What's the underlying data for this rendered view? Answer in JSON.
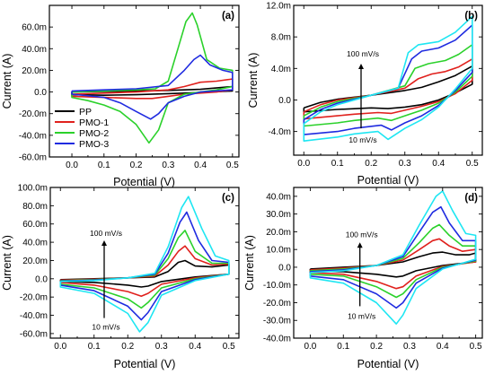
{
  "chart_data": [
    {
      "id": "a",
      "type": "line",
      "panel_label": "(a)",
      "xlabel": "Potential (V)",
      "ylabel": "Current (A)",
      "xlim": [
        -0.07,
        0.52
      ],
      "ylim": [
        -60,
        80
      ],
      "xticks": [
        0.0,
        0.1,
        0.2,
        0.3,
        0.4,
        0.5
      ],
      "xtick_labels": [
        "0.0",
        "0.1",
        "0.2",
        "0.3",
        "0.4",
        "0.5"
      ],
      "yticks": [
        -60,
        -40,
        -20,
        0,
        20,
        40,
        60
      ],
      "ytick_labels": [
        "-60.0m",
        "-40.0m",
        "-20.0m",
        "0.0",
        "20.0m",
        "40.0m",
        "60.0m"
      ],
      "legend": {
        "position": "lower-left",
        "entries": [
          "PP",
          "PMO-1",
          "PMO-2",
          "PMO-3"
        ]
      },
      "series": [
        {
          "name": "PP",
          "color": "#000000",
          "x": [
            0.0,
            0.1,
            0.2,
            0.3,
            0.4,
            0.5,
            0.5,
            0.4,
            0.3,
            0.2,
            0.1,
            0.0,
            0.0
          ],
          "y": [
            0.0,
            0.5,
            1.0,
            1.5,
            2.5,
            5.0,
            1.0,
            -0.5,
            -1.5,
            -2.5,
            -3.0,
            -2.5,
            0.0
          ]
        },
        {
          "name": "PMO-1",
          "color": "#e0211d",
          "x": [
            0.0,
            0.1,
            0.2,
            0.3,
            0.35,
            0.4,
            0.45,
            0.5,
            0.5,
            0.45,
            0.4,
            0.35,
            0.3,
            0.25,
            0.2,
            0.1,
            0.0,
            0.0
          ],
          "y": [
            -2.0,
            -1.0,
            0.0,
            2.0,
            5.0,
            9.0,
            10.0,
            12.0,
            2.0,
            0.0,
            -1.0,
            -2.0,
            -4.0,
            -6.0,
            -6.0,
            -5.0,
            -4.0,
            -2.0
          ]
        },
        {
          "name": "PMO-2",
          "color": "#2bd12b",
          "x": [
            0.0,
            0.1,
            0.2,
            0.26,
            0.3,
            0.33,
            0.355,
            0.375,
            0.39,
            0.42,
            0.46,
            0.5,
            0.5,
            0.45,
            0.4,
            0.35,
            0.3,
            0.27,
            0.24,
            0.2,
            0.15,
            0.1,
            0.05,
            0.0,
            0.0
          ],
          "y": [
            0.0,
            1.0,
            2.0,
            3.0,
            10.0,
            40.0,
            65.0,
            73.0,
            62.0,
            30.0,
            22.0,
            20.0,
            5.0,
            2.0,
            0.0,
            -2.0,
            -10.0,
            -35.0,
            -47.0,
            -30.0,
            -18.0,
            -12.0,
            -8.0,
            -5.0,
            0.0
          ]
        },
        {
          "name": "PMO-3",
          "color": "#1f2be0",
          "x": [
            0.0,
            0.1,
            0.2,
            0.3,
            0.35,
            0.38,
            0.4,
            0.43,
            0.47,
            0.5,
            0.5,
            0.4,
            0.35,
            0.3,
            0.27,
            0.245,
            0.2,
            0.15,
            0.1,
            0.0,
            0.0
          ],
          "y": [
            1.0,
            2.0,
            3.0,
            6.0,
            20.0,
            30.0,
            34.0,
            25.0,
            20.0,
            18.0,
            2.0,
            0.0,
            -4.0,
            -10.0,
            -20.0,
            -25.0,
            -18.0,
            -10.0,
            -5.0,
            -2.0,
            1.0
          ]
        }
      ]
    },
    {
      "id": "b",
      "type": "line",
      "panel_label": "(b)",
      "xlabel": "Potential (V)",
      "ylabel": "Current (A)",
      "xlim": [
        -0.03,
        0.53
      ],
      "ylim": [
        -7,
        12
      ],
      "xticks": [
        0.0,
        0.1,
        0.2,
        0.3,
        0.4,
        0.5
      ],
      "xtick_labels": [
        "0.0",
        "0.1",
        "0.2",
        "0.3",
        "0.4",
        "0.5"
      ],
      "yticks": [
        -4,
        0,
        4,
        8,
        12
      ],
      "ytick_labels": [
        "-4.0m",
        "0.0",
        "4.0m",
        "8.0m",
        "12.0m"
      ],
      "annotations": {
        "top": "100 mV/s",
        "bottom": "10 mV/s"
      },
      "series": [
        {
          "name": "",
          "color": "#000000",
          "x": [
            0.0,
            0.05,
            0.1,
            0.2,
            0.3,
            0.35,
            0.4,
            0.45,
            0.5,
            0.5,
            0.45,
            0.4,
            0.35,
            0.3,
            0.25,
            0.2,
            0.1,
            0.0,
            0.0
          ],
          "y": [
            -1.0,
            -0.3,
            0.1,
            0.6,
            1.2,
            1.6,
            2.3,
            3.1,
            4.3,
            2.0,
            0.9,
            0.0,
            -0.6,
            -0.9,
            -1.1,
            -1.0,
            -1.2,
            -1.5,
            -1.0
          ]
        },
        {
          "name": "",
          "color": "#e0211d",
          "x": [
            0.0,
            0.05,
            0.1,
            0.2,
            0.3,
            0.34,
            0.38,
            0.42,
            0.46,
            0.5,
            0.5,
            0.45,
            0.4,
            0.35,
            0.3,
            0.26,
            0.22,
            0.15,
            0.1,
            0.0,
            0.0
          ],
          "y": [
            -1.5,
            -0.6,
            0.0,
            0.6,
            1.5,
            2.7,
            3.3,
            3.6,
            4.2,
            5.2,
            2.5,
            0.8,
            -0.2,
            -0.8,
            -1.3,
            -1.7,
            -1.6,
            -1.8,
            -2.0,
            -2.4,
            -1.5
          ]
        },
        {
          "name": "",
          "color": "#2bd12b",
          "x": [
            0.0,
            0.05,
            0.1,
            0.2,
            0.3,
            0.33,
            0.37,
            0.42,
            0.46,
            0.5,
            0.5,
            0.45,
            0.4,
            0.35,
            0.3,
            0.26,
            0.22,
            0.15,
            0.1,
            0.0,
            0.0
          ],
          "y": [
            -2.0,
            -0.9,
            -0.2,
            0.6,
            1.8,
            4.0,
            4.6,
            5.0,
            5.8,
            7.0,
            3.0,
            1.0,
            -0.4,
            -1.3,
            -2.0,
            -2.6,
            -2.3,
            -2.6,
            -2.9,
            -3.3,
            -2.0
          ]
        },
        {
          "name": "",
          "color": "#1f2be0",
          "x": [
            0.0,
            0.05,
            0.1,
            0.2,
            0.28,
            0.32,
            0.35,
            0.4,
            0.45,
            0.5,
            0.5,
            0.45,
            0.4,
            0.35,
            0.3,
            0.26,
            0.23,
            0.15,
            0.1,
            0.0,
            0.0
          ],
          "y": [
            -2.5,
            -1.2,
            -0.4,
            0.6,
            1.5,
            5.2,
            6.2,
            6.6,
            7.6,
            9.5,
            3.5,
            1.2,
            -0.7,
            -2.0,
            -2.9,
            -3.8,
            -3.2,
            -3.6,
            -4.0,
            -4.4,
            -2.5
          ]
        },
        {
          "name": "",
          "color": "#1ee6f2",
          "x": [
            0.0,
            0.05,
            0.1,
            0.2,
            0.28,
            0.31,
            0.34,
            0.4,
            0.45,
            0.5,
            0.5,
            0.45,
            0.4,
            0.35,
            0.3,
            0.25,
            0.22,
            0.15,
            0.1,
            0.0,
            0.0
          ],
          "y": [
            -3.0,
            -1.5,
            -0.6,
            0.6,
            1.5,
            6.0,
            7.0,
            7.4,
            8.6,
            10.6,
            4.0,
            1.4,
            -0.9,
            -2.5,
            -3.6,
            -5.0,
            -4.0,
            -4.3,
            -4.7,
            -5.2,
            -3.0
          ]
        }
      ]
    },
    {
      "id": "c",
      "type": "line",
      "panel_label": "(c)",
      "xlabel": "Potential (V)",
      "ylabel": "Current (A)",
      "xlim": [
        -0.03,
        0.53
      ],
      "ylim": [
        -65,
        100
      ],
      "xticks": [
        0.0,
        0.1,
        0.2,
        0.3,
        0.4,
        0.5
      ],
      "xtick_labels": [
        "0.0",
        "0.1",
        "0.2",
        "0.3",
        "0.4",
        "0.5"
      ],
      "yticks": [
        -60,
        -40,
        -20,
        0,
        20,
        40,
        60,
        80,
        100
      ],
      "ytick_labels": [
        "-60.0m",
        "-40.0m",
        "-20.0m",
        "0.0",
        "20.0m",
        "40.0m",
        "60.0m",
        "80.0m",
        "100.0m"
      ],
      "annotations": {
        "top": "100 mV/s",
        "bottom": "10 mV/s"
      },
      "series": [
        {
          "name": "",
          "color": "#000000",
          "x": [
            0.0,
            0.1,
            0.2,
            0.28,
            0.32,
            0.35,
            0.37,
            0.4,
            0.45,
            0.5,
            0.5,
            0.4,
            0.3,
            0.26,
            0.24,
            0.2,
            0.1,
            0.0,
            0.0
          ],
          "y": [
            -1.0,
            0.0,
            1.0,
            2.0,
            8.0,
            18.0,
            20.0,
            14.0,
            13.0,
            15.0,
            5.0,
            2.0,
            -3.0,
            -8.0,
            -9.0,
            -7.0,
            -4.0,
            -3.0,
            -1.0
          ]
        },
        {
          "name": "",
          "color": "#e0211d",
          "x": [
            0.0,
            0.1,
            0.2,
            0.28,
            0.32,
            0.35,
            0.37,
            0.4,
            0.45,
            0.5,
            0.5,
            0.4,
            0.3,
            0.26,
            0.24,
            0.2,
            0.1,
            0.0,
            0.0
          ],
          "y": [
            -1.5,
            -0.5,
            1.0,
            3.0,
            15.0,
            30.0,
            36.0,
            22.0,
            15.0,
            16.0,
            5.0,
            1.0,
            -6.0,
            -16.0,
            -19.0,
            -14.0,
            -7.0,
            -4.0,
            -1.5
          ]
        },
        {
          "name": "",
          "color": "#2bd12b",
          "x": [
            0.0,
            0.1,
            0.2,
            0.28,
            0.32,
            0.35,
            0.37,
            0.4,
            0.45,
            0.5,
            0.5,
            0.4,
            0.3,
            0.26,
            0.24,
            0.2,
            0.1,
            0.0,
            0.0
          ],
          "y": [
            -2.0,
            -1.0,
            1.0,
            4.0,
            22.0,
            45.0,
            53.0,
            30.0,
            17.0,
            17.0,
            5.0,
            0.0,
            -10.0,
            -26.0,
            -32.0,
            -22.0,
            -10.0,
            -6.0,
            -2.0
          ]
        },
        {
          "name": "",
          "color": "#1f2be0",
          "x": [
            0.0,
            0.1,
            0.2,
            0.28,
            0.32,
            0.355,
            0.375,
            0.41,
            0.45,
            0.5,
            0.5,
            0.4,
            0.3,
            0.26,
            0.24,
            0.2,
            0.1,
            0.0,
            0.0
          ],
          "y": [
            -2.5,
            -1.5,
            1.0,
            5.0,
            28.0,
            62.0,
            73.0,
            42.0,
            20.0,
            18.0,
            5.0,
            -1.0,
            -14.0,
            -37.0,
            -45.0,
            -30.0,
            -13.0,
            -7.0,
            -2.5
          ]
        },
        {
          "name": "",
          "color": "#1ee6f2",
          "x": [
            0.0,
            0.1,
            0.2,
            0.28,
            0.32,
            0.36,
            0.38,
            0.42,
            0.46,
            0.5,
            0.5,
            0.4,
            0.3,
            0.26,
            0.235,
            0.2,
            0.1,
            0.0,
            0.0
          ],
          "y": [
            -3.0,
            -2.0,
            1.0,
            6.0,
            35.0,
            78.0,
            90.0,
            55.0,
            25.0,
            20.0,
            5.0,
            -2.0,
            -18.0,
            -48.0,
            -58.0,
            -38.0,
            -16.0,
            -9.0,
            -3.0
          ]
        }
      ]
    },
    {
      "id": "d",
      "type": "line",
      "panel_label": "(d)",
      "xlabel": "Potential (V)",
      "ylabel": "Current (A)",
      "xlim": [
        -0.05,
        0.52
      ],
      "ylim": [
        -40,
        45
      ],
      "xticks": [
        0.0,
        0.1,
        0.2,
        0.3,
        0.4,
        0.5
      ],
      "xtick_labels": [
        "0.0",
        "0.1",
        "0.2",
        "0.3",
        "0.4",
        "0.5"
      ],
      "yticks": [
        -40,
        -30,
        -20,
        -10,
        0,
        10,
        20,
        30,
        40
      ],
      "ytick_labels": [
        "-40.0m",
        "-30.0m",
        "-20.0m",
        "-10.0m",
        "0.0",
        "10.0m",
        "20.0m",
        "30.0m",
        "40.0m"
      ],
      "annotations": {
        "top": "100 mV/s",
        "bottom": "10 mV/s"
      },
      "series": [
        {
          "name": "",
          "color": "#000000",
          "x": [
            0.0,
            0.1,
            0.2,
            0.28,
            0.33,
            0.37,
            0.4,
            0.44,
            0.48,
            0.5,
            0.5,
            0.4,
            0.32,
            0.28,
            0.26,
            0.2,
            0.1,
            0.0,
            0.0
          ],
          "y": [
            -1.0,
            0.0,
            1.0,
            3.0,
            6.0,
            8.0,
            8.5,
            7.0,
            7.0,
            8.0,
            3.0,
            1.0,
            -2.0,
            -5.0,
            -5.5,
            -4.0,
            -2.5,
            -2.0,
            -1.0
          ]
        },
        {
          "name": "",
          "color": "#e0211d",
          "x": [
            0.0,
            0.1,
            0.2,
            0.28,
            0.33,
            0.37,
            0.39,
            0.42,
            0.46,
            0.5,
            0.5,
            0.4,
            0.32,
            0.28,
            0.26,
            0.2,
            0.1,
            0.0,
            0.0
          ],
          "y": [
            -1.5,
            -0.5,
            1.0,
            4.0,
            10.0,
            15.0,
            16.0,
            12.0,
            9.0,
            10.0,
            3.0,
            0.5,
            -5.0,
            -11.0,
            -12.0,
            -8.0,
            -4.0,
            -3.0,
            -1.5
          ]
        },
        {
          "name": "",
          "color": "#2bd12b",
          "x": [
            0.0,
            0.1,
            0.2,
            0.28,
            0.33,
            0.37,
            0.39,
            0.42,
            0.46,
            0.5,
            0.5,
            0.4,
            0.32,
            0.28,
            0.26,
            0.2,
            0.1,
            0.0,
            0.0
          ],
          "y": [
            -2.0,
            -1.0,
            1.0,
            5.0,
            14.0,
            22.0,
            24.0,
            18.0,
            12.0,
            12.0,
            3.5,
            0.0,
            -7.0,
            -15.0,
            -17.0,
            -11.0,
            -5.0,
            -4.0,
            -2.0
          ]
        },
        {
          "name": "",
          "color": "#1f2be0",
          "x": [
            0.0,
            0.1,
            0.2,
            0.28,
            0.33,
            0.37,
            0.395,
            0.42,
            0.46,
            0.5,
            0.5,
            0.4,
            0.32,
            0.28,
            0.26,
            0.2,
            0.1,
            0.0,
            0.0
          ],
          "y": [
            -2.5,
            -1.5,
            1.0,
            6.0,
            20.0,
            31.0,
            34.0,
            25.0,
            15.0,
            15.0,
            4.0,
            -0.5,
            -9.0,
            -20.0,
            -23.0,
            -15.0,
            -7.0,
            -5.0,
            -2.5
          ]
        },
        {
          "name": "",
          "color": "#1ee6f2",
          "x": [
            0.0,
            0.1,
            0.2,
            0.28,
            0.33,
            0.38,
            0.4,
            0.43,
            0.47,
            0.5,
            0.5,
            0.4,
            0.32,
            0.28,
            0.26,
            0.2,
            0.1,
            0.0,
            0.0
          ],
          "y": [
            -3.0,
            -2.0,
            1.0,
            7.0,
            24.0,
            40.0,
            43.0,
            32.0,
            19.0,
            18.0,
            4.5,
            -1.0,
            -12.0,
            -27.0,
            -32.0,
            -20.0,
            -9.0,
            -6.0,
            -3.0
          ]
        }
      ]
    }
  ]
}
